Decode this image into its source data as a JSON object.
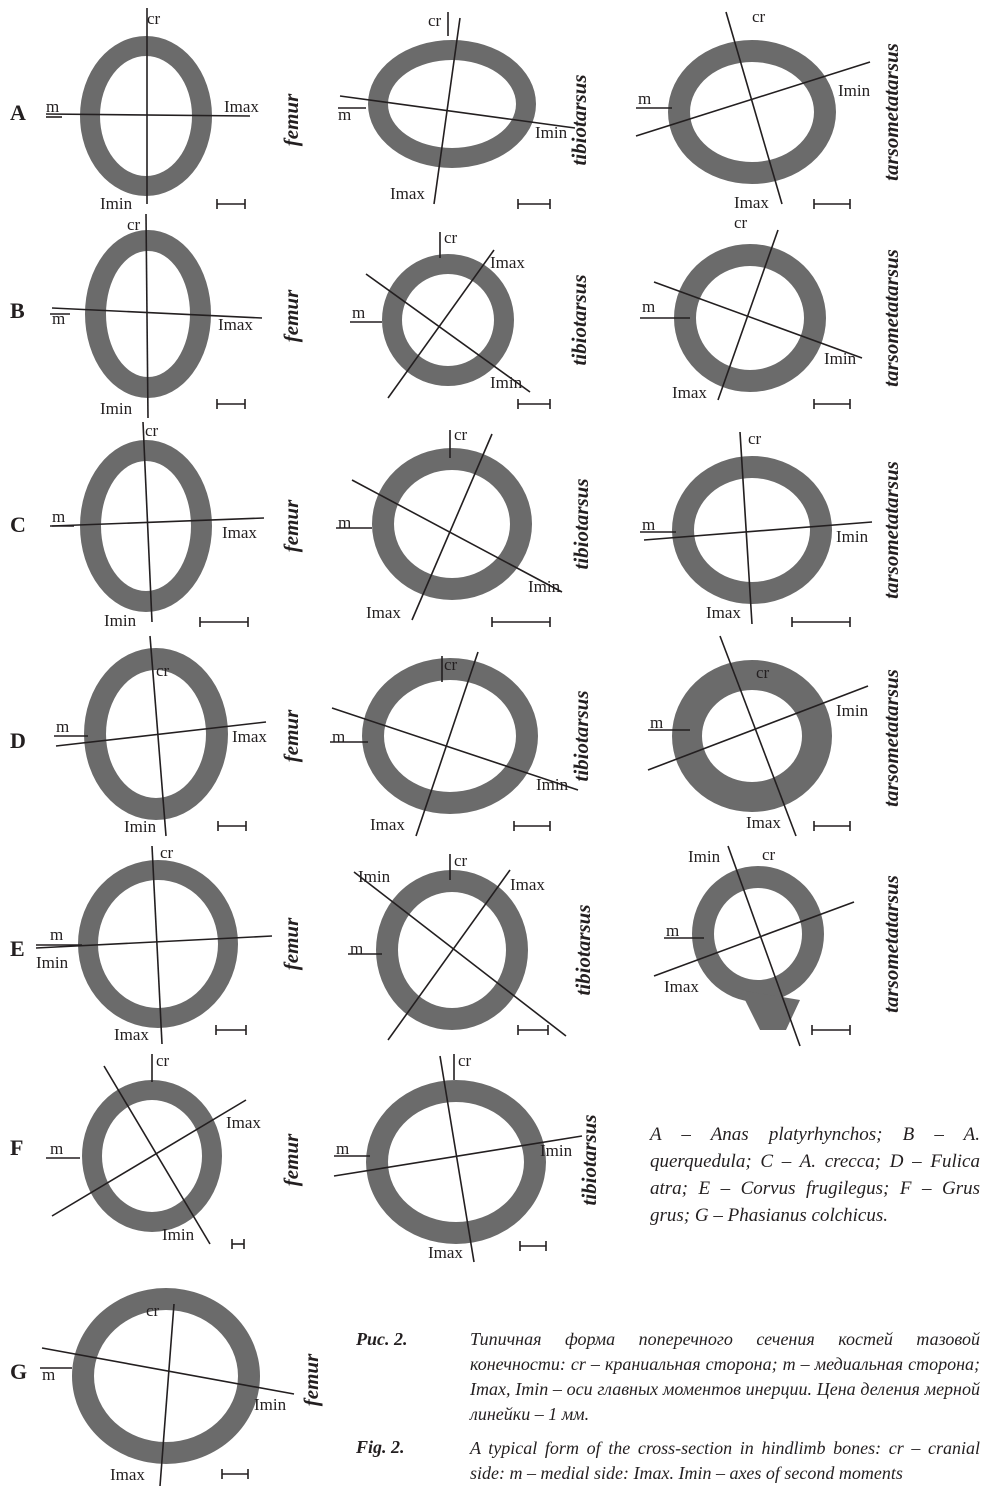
{
  "rows": [
    "A",
    "B",
    "C",
    "D",
    "E",
    "F",
    "G"
  ],
  "bones": {
    "femur": "femur",
    "tibiotarsus": "tibiotarsus",
    "tarsometatarsus": "tarsometatarsus"
  },
  "axis_labels": {
    "cr": "cr",
    "m": "m",
    "imax": "Imax",
    "imin": "Imin"
  },
  "legend": "A – Anas platyrhynchos; B – A. querquedula; C – A. crecca; D – Fulica atra; E – Corvus frugilegus; F – Grus grus; G – Phasianus colchicus.",
  "caption_ru": {
    "label": "Рис. 2.",
    "text": "Типичная форма поперечного сечения костей тазовой конечности: cr – краниальная сторона; m – медиальная сторона; Imax, Imin – оси главных моментов инерции. Цена деления мерной линейки – 1 мм."
  },
  "caption_en": {
    "label": "Fig. 2.",
    "text": "A typical form of the cross-section in hindlimb bones: cr – cranial side: m – medial side: Imax. Imin – axes of second moments"
  },
  "colors": {
    "bone_wall": "#6b6b6b",
    "ink": "#231f20",
    "background": "#ffffff"
  }
}
